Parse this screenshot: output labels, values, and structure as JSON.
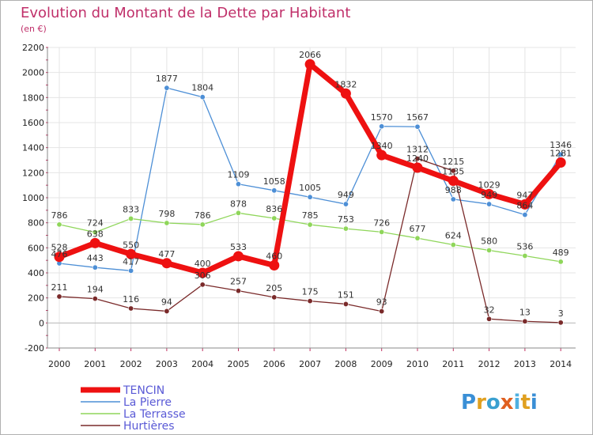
{
  "title": "Evolution du Montant de la Dette par Habitant",
  "subtitle": "(en €)",
  "logo": "Proxiti",
  "colors": {
    "title": "#c0306a",
    "axis": "#888888",
    "grid": "#e4e4e4",
    "axis_tick_marks": "#c03060"
  },
  "chart_data": {
    "type": "line",
    "title": "Evolution du Montant de la Dette par Habitant",
    "subtitle": "(en €)",
    "x": [
      "2000",
      "2001",
      "2002",
      "2003",
      "2004",
      "2005",
      "2006",
      "2007",
      "2008",
      "2009",
      "2010",
      "2011",
      "2012",
      "2013",
      "2014"
    ],
    "ylim": [
      -200,
      2200
    ],
    "yticks": [
      -200,
      0,
      200,
      400,
      600,
      800,
      1000,
      1200,
      1400,
      1600,
      1800,
      2000,
      2200
    ],
    "grid": true,
    "legend_position": "bottom-left",
    "series": [
      {
        "name": "TENCIN",
        "color": "#ee1111",
        "thick": true,
        "values": [
          528,
          638,
          550,
          477,
          400,
          533,
          460,
          2066,
          1832,
          1340,
          1240,
          1135,
          1029,
          947,
          1281
        ],
        "labels": [
          "528",
          "638",
          "550",
          "477",
          "400",
          "533",
          "460",
          "2066",
          "1832",
          "1340",
          "1240",
          "1135",
          "1029",
          "947",
          "1281"
        ]
      },
      {
        "name": "La Pierre",
        "color": "#4d8fd6",
        "thick": false,
        "values": [
          476,
          443,
          417,
          1877,
          1804,
          1109,
          1058,
          1005,
          949,
          1570,
          1567,
          988,
          949,
          864,
          1346
        ],
        "labels": [
          "476",
          "443",
          "417",
          "1877",
          "1804",
          "1109",
          "1058",
          "1005",
          "949",
          "1570",
          "1567",
          "988",
          "949",
          "864",
          "1346"
        ]
      },
      {
        "name": "La Terrasse",
        "color": "#8fd65a",
        "thick": false,
        "values": [
          786,
          724,
          833,
          798,
          786,
          878,
          836,
          785,
          753,
          726,
          677,
          624,
          580,
          536,
          489
        ],
        "labels": [
          "786",
          "724",
          "833",
          "798",
          "786",
          "878",
          "836",
          "785",
          "753",
          "726",
          "677",
          "624",
          "580",
          "536",
          "489"
        ]
      },
      {
        "name": "Hurtières",
        "color": "#7a2a2a",
        "thick": false,
        "values": [
          211,
          194,
          116,
          94,
          306,
          257,
          205,
          175,
          151,
          93,
          1312,
          1215,
          32,
          13,
          3
        ],
        "labels": [
          "211",
          "194",
          "116",
          "94",
          "306",
          "257",
          "205",
          "175",
          "151",
          "93",
          "1312",
          "1215",
          "32",
          "13",
          "3"
        ]
      }
    ]
  }
}
